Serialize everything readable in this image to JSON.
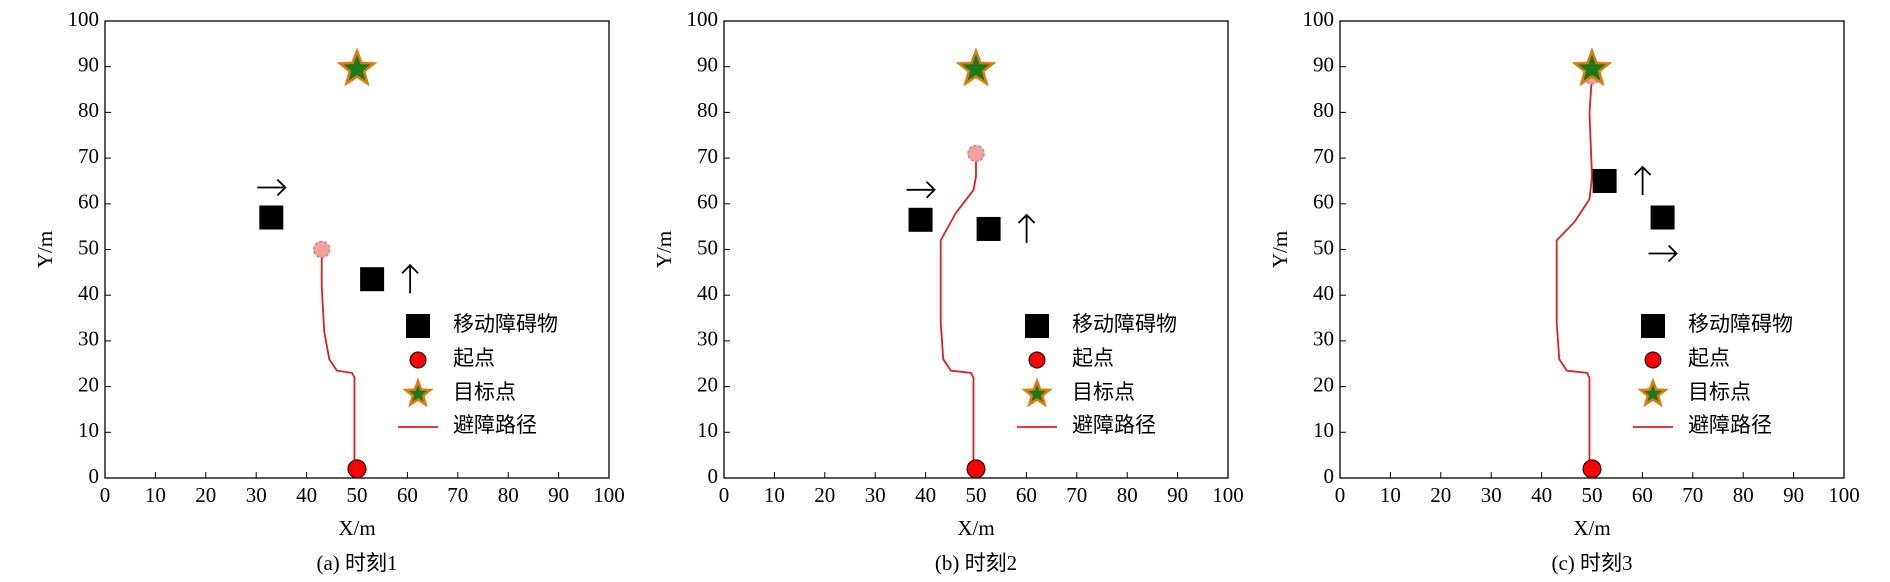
{
  "chart_data": [
    {
      "type": "scatter",
      "caption": "(a) 时刻1",
      "x_label": "X/m",
      "y_label": "Y/m",
      "xlim": [
        0,
        100
      ],
      "ylim": [
        0,
        100
      ],
      "xticks": [
        0,
        10,
        20,
        30,
        40,
        50,
        60,
        70,
        80,
        90,
        100
      ],
      "yticks": [
        0,
        10,
        20,
        30,
        40,
        50,
        60,
        70,
        80,
        90,
        100
      ],
      "legend": "lower right",
      "series": [
        {
          "name": "移动障碍物",
          "color": "#000000",
          "marker": "square",
          "motion": [
            "right",
            "up"
          ],
          "x": [
            33,
            53
          ],
          "y": [
            57,
            43.5
          ]
        },
        {
          "name": "起点",
          "color": "#ff0000",
          "marker": "circle",
          "x": [
            50
          ],
          "y": [
            2
          ]
        },
        {
          "name": "目标点",
          "color": "#1a7a1a",
          "marker": "star",
          "x": [
            50
          ],
          "y": [
            89.5
          ]
        },
        {
          "name": "避障路径",
          "color": "#e02020",
          "marker": "line",
          "x": [
            49.5,
            49.5,
            49,
            46,
            44.5,
            43.5,
            43,
            43
          ],
          "y": [
            2,
            22,
            23,
            23.5,
            26,
            32,
            42,
            50
          ]
        }
      ],
      "robot": {
        "color": "#f4a0a0",
        "x": 43,
        "y": 50
      }
    },
    {
      "type": "scatter",
      "caption": "(b) 时刻2",
      "x_label": "X/m",
      "y_label": "Y/m",
      "xlim": [
        0,
        100
      ],
      "ylim": [
        0,
        100
      ],
      "xticks": [
        0,
        10,
        20,
        30,
        40,
        50,
        60,
        70,
        80,
        90,
        100
      ],
      "yticks": [
        0,
        10,
        20,
        30,
        40,
        50,
        60,
        70,
        80,
        90,
        100
      ],
      "legend": "lower right",
      "series": [
        {
          "name": "移动障碍物",
          "color": "#000000",
          "marker": "square",
          "motion": [
            "right",
            "up"
          ],
          "x": [
            39,
            52.5
          ],
          "y": [
            56.5,
            54.5
          ]
        },
        {
          "name": "起点",
          "color": "#ff0000",
          "marker": "circle",
          "x": [
            50
          ],
          "y": [
            2
          ]
        },
        {
          "name": "目标点",
          "color": "#1a7a1a",
          "marker": "star",
          "x": [
            50
          ],
          "y": [
            89.5
          ]
        },
        {
          "name": "避障路径",
          "color": "#e02020",
          "marker": "line",
          "x": [
            49.5,
            49.5,
            49,
            45,
            43.5,
            43,
            43,
            46,
            49.5,
            50,
            50
          ],
          "y": [
            2,
            22,
            23,
            23.5,
            26,
            34,
            52,
            58,
            63,
            66,
            71
          ]
        }
      ],
      "robot": {
        "color": "#f4a0a0",
        "x": 50,
        "y": 71
      }
    },
    {
      "type": "scatter",
      "caption": "(c) 时刻3",
      "x_label": "X/m",
      "y_label": "Y/m",
      "xlim": [
        0,
        100
      ],
      "ylim": [
        0,
        100
      ],
      "xticks": [
        0,
        10,
        20,
        30,
        40,
        50,
        60,
        70,
        80,
        90,
        100
      ],
      "yticks": [
        0,
        10,
        20,
        30,
        40,
        50,
        60,
        70,
        80,
        90,
        100
      ],
      "legend": "lower right",
      "series": [
        {
          "name": "移动障碍物",
          "color": "#000000",
          "marker": "square",
          "motion": [
            "up",
            "right"
          ],
          "x": [
            52.5,
            64
          ],
          "y": [
            65,
            57
          ]
        },
        {
          "name": "起点",
          "color": "#ff0000",
          "marker": "circle",
          "x": [
            50
          ],
          "y": [
            2
          ]
        },
        {
          "name": "目标点",
          "color": "#1a7a1a",
          "marker": "star",
          "x": [
            50
          ],
          "y": [
            89.5
          ]
        },
        {
          "name": "避障路径",
          "color": "#e02020",
          "marker": "line",
          "x": [
            49.5,
            49.5,
            49,
            45,
            43.5,
            43,
            43,
            46.5,
            49.5,
            50,
            49.5,
            50
          ],
          "y": [
            2,
            22,
            23,
            23.5,
            26,
            34,
            52,
            56,
            61,
            66,
            80,
            88
          ]
        }
      ],
      "robot": {
        "color": "#f4a0a0",
        "x": 50,
        "y": 88
      }
    }
  ]
}
